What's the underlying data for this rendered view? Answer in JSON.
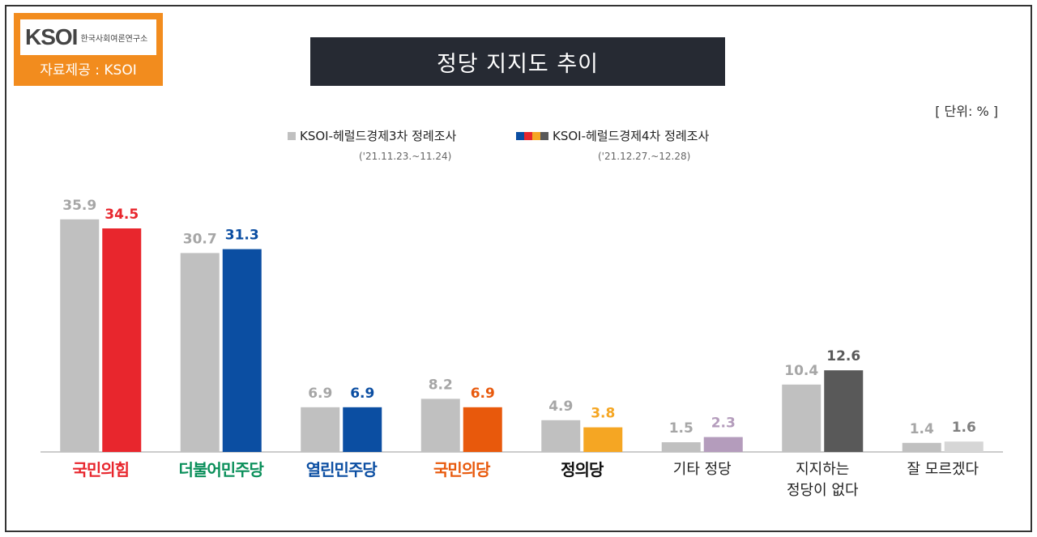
{
  "logo": {
    "mark": "KSOI",
    "subtitle": "한국사회여론연구소",
    "source": "자료제공 : KSOI"
  },
  "title": "정당 지지도 추이",
  "unit": "[ 단위: % ]",
  "colors": {
    "gray": "#c0c0c0",
    "title_bg": "#262a33",
    "logo_orange": "#f28c1e"
  },
  "chart_data": {
    "type": "bar",
    "categories": [
      "국민의힘",
      "더불어민주당",
      "열린민주당",
      "국민의당",
      "정의당",
      "기타 정당",
      "지지하는 정당이 없다",
      "잘 모르겠다"
    ],
    "category_lines": [
      [
        "국민의힘"
      ],
      [
        "더불어민주당"
      ],
      [
        "열린민주당"
      ],
      [
        "국민의당"
      ],
      [
        "정의당"
      ],
      [
        "기타 정당"
      ],
      [
        "지지하는",
        "정당이 없다"
      ],
      [
        "잘 모르겠다"
      ]
    ],
    "series": [
      {
        "name": "KSOI-헤럴드경제3차 정례조사",
        "date": "('21.11.23.~11.24)",
        "values": [
          35.9,
          30.7,
          6.9,
          8.2,
          4.9,
          1.5,
          10.4,
          1.4
        ],
        "colors": [
          "#c0c0c0",
          "#c0c0c0",
          "#c0c0c0",
          "#c0c0c0",
          "#c0c0c0",
          "#c0c0c0",
          "#c0c0c0",
          "#c0c0c0"
        ]
      },
      {
        "name": "KSOI-헤럴드경제4차 정례조사",
        "date": "('21.12.27.~12.28)",
        "values": [
          34.5,
          31.3,
          6.9,
          6.9,
          3.8,
          2.3,
          12.6,
          1.6
        ],
        "colors": [
          "#e8262d",
          "#0b4ea2",
          "#0b4ea2",
          "#e8590c",
          "#f5a623",
          "#b49cbc",
          "#595959",
          "#d6d6d6"
        ]
      }
    ],
    "legend_swatches": [
      "#0b4ea2",
      "#e8262d",
      "#f5a623",
      "#595959"
    ],
    "party_colors": [
      "#e8262d",
      "#0a8f5a",
      "#0b4ea2",
      "#e8590c",
      "#111111",
      "#222222",
      "#222222",
      "#222222"
    ],
    "ylim": [
      0,
      40
    ],
    "grid": false,
    "legend_position": "top"
  }
}
